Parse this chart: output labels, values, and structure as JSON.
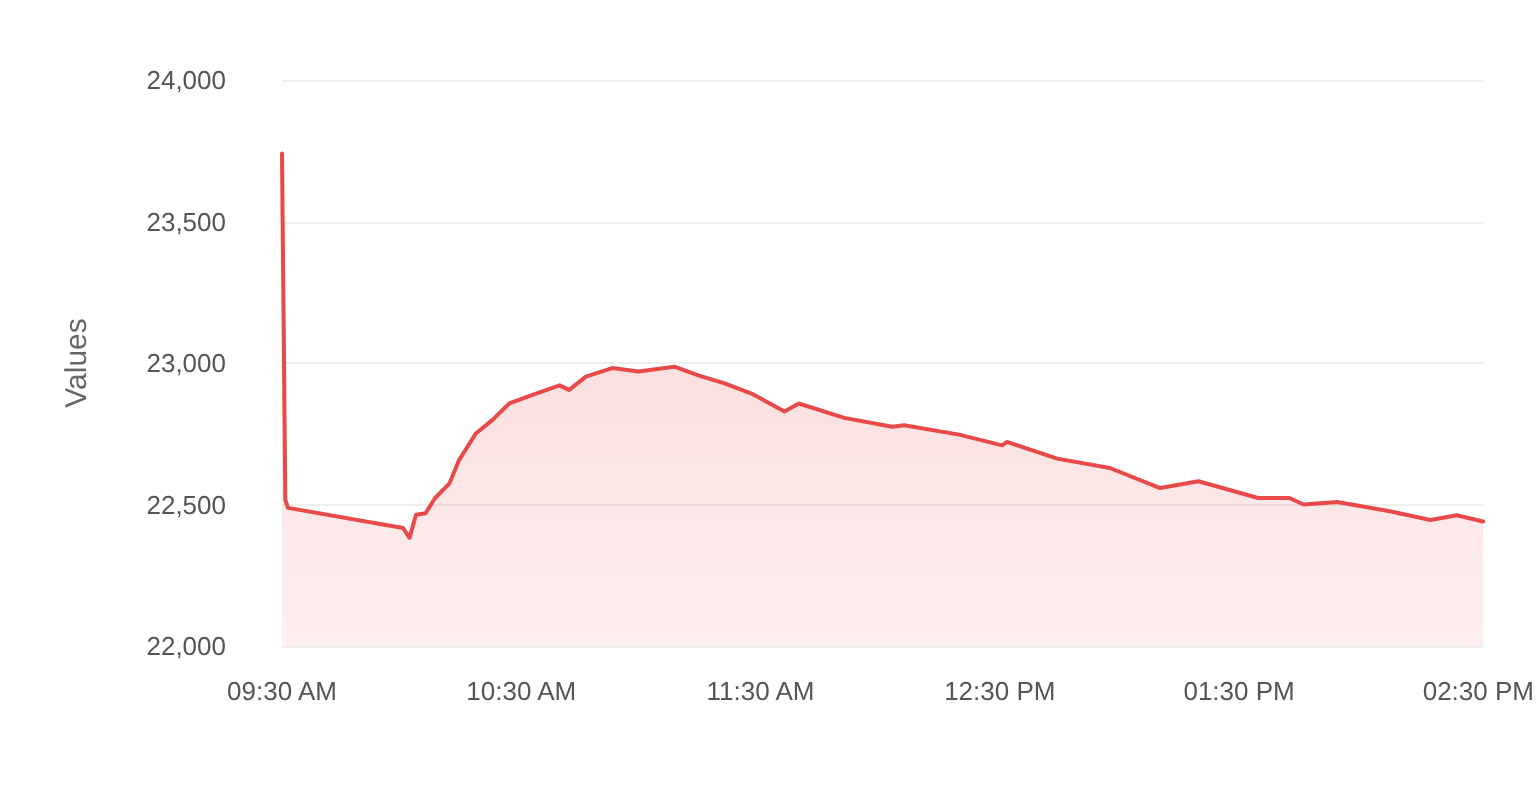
{
  "chart_data": {
    "type": "area",
    "ylabel": "Values",
    "grid": "y",
    "marker": "none",
    "line_style": "solid",
    "xlim": [
      9.5,
      14.52
    ],
    "ylim": [
      22000,
      24000
    ],
    "yticks": [
      {
        "value": 22000,
        "label": "22,000"
      },
      {
        "value": 22500,
        "label": "22,500"
      },
      {
        "value": 23000,
        "label": "23,000"
      },
      {
        "value": 23500,
        "label": "23,500"
      },
      {
        "value": 24000,
        "label": "24,000"
      }
    ],
    "xticks": [
      {
        "value": 9.5,
        "label": "09:30 AM"
      },
      {
        "value": 10.5,
        "label": "10:30 AM"
      },
      {
        "value": 11.5,
        "label": "11:30 AM"
      },
      {
        "value": 12.5,
        "label": "12:30 PM"
      },
      {
        "value": 13.5,
        "label": "01:30 PM"
      },
      {
        "value": 14.5,
        "label": "02:30 PM"
      }
    ],
    "series": [
      {
        "color": "#e84a4a",
        "x": [
          9.5,
          9.514,
          9.525,
          10.006,
          10.033,
          10.06,
          10.1,
          10.14,
          10.2,
          10.24,
          10.31,
          10.38,
          10.45,
          10.55,
          10.66,
          10.7,
          10.77,
          10.88,
          10.99,
          11.14,
          11.24,
          11.35,
          11.46,
          11.6,
          11.66,
          11.85,
          12.05,
          12.1,
          12.33,
          12.51,
          12.53,
          12.74,
          12.96,
          13.17,
          13.33,
          13.58,
          13.71,
          13.77,
          13.91,
          14.13,
          14.3,
          14.41,
          14.52
        ],
        "values": [
          23740,
          22516,
          22488,
          22417,
          22382,
          22464,
          22469,
          22523,
          22575,
          22657,
          22751,
          22799,
          22857,
          22888,
          22921,
          22905,
          22952,
          22982,
          22970,
          22987,
          22956,
          22928,
          22893,
          22829,
          22857,
          22806,
          22775,
          22780,
          22747,
          22709,
          22721,
          22662,
          22629,
          22558,
          22582,
          22523,
          22523,
          22500,
          22509,
          22476,
          22445,
          22462,
          22440
        ]
      }
    ]
  }
}
